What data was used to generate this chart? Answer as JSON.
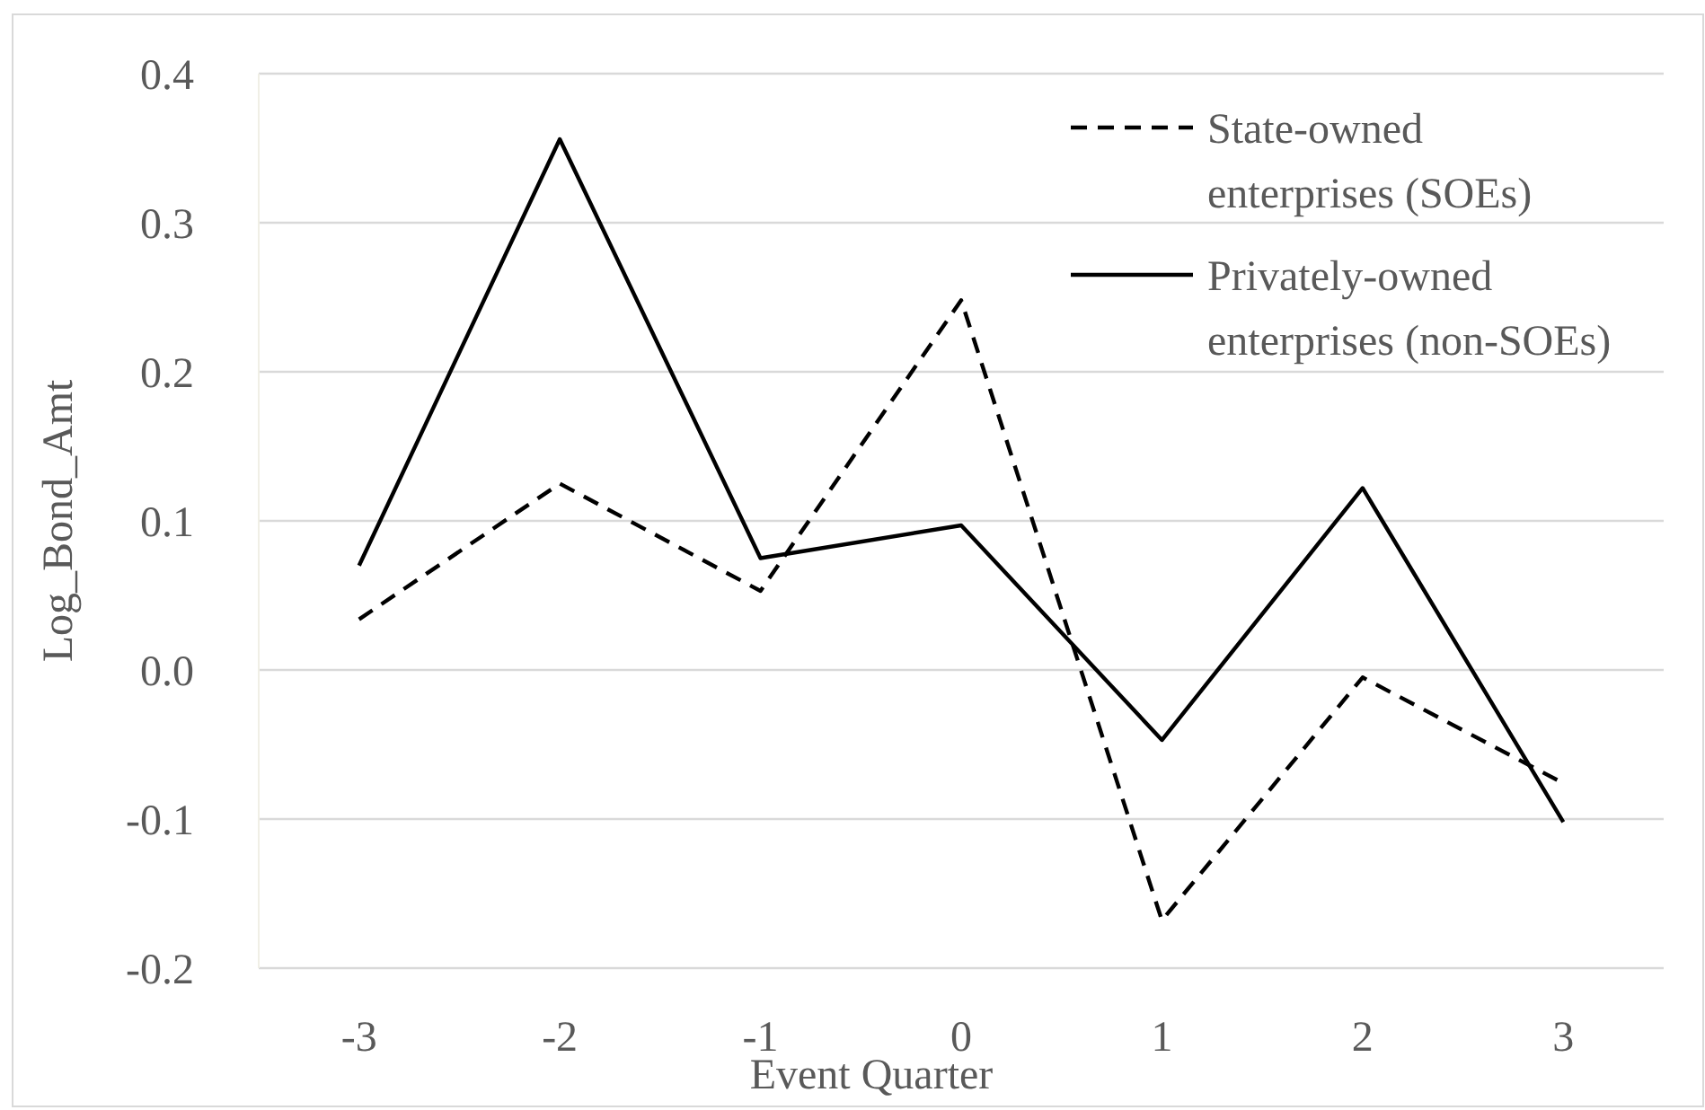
{
  "chart_data": {
    "type": "line",
    "xlabel": "Event Quarter",
    "ylabel": "Log_Bond_Amt",
    "categories": [
      "-3",
      "-2",
      "-1",
      "0",
      "1",
      "2",
      "3"
    ],
    "series": [
      {
        "name": "State-owned enterprises (SOEs)",
        "color": "#000000",
        "line_style": "dashed",
        "values": [
          0.034,
          0.125,
          0.053,
          0.248,
          -0.168,
          -0.005,
          -0.076
        ]
      },
      {
        "name": "Privately-owned enterprises (non-SOEs)",
        "color": "#000000",
        "line_style": "solid",
        "values": [
          0.07,
          0.356,
          0.075,
          0.097,
          -0.047,
          0.122,
          -0.102
        ]
      }
    ],
    "ylim": [
      -0.2,
      0.4
    ],
    "yticks": [
      {
        "value": -0.2,
        "label": "-0.2"
      },
      {
        "value": -0.1,
        "label": "-0.1"
      },
      {
        "value": 0,
        "label": "0.0"
      },
      {
        "value": 0.1,
        "label": "0.1"
      },
      {
        "value": 0.2,
        "label": "0.2"
      },
      {
        "value": 0.3,
        "label": "0.3"
      },
      {
        "value": 0.4,
        "label": "0.4"
      }
    ],
    "grid": "y",
    "legend": "top right",
    "marker": "none"
  }
}
